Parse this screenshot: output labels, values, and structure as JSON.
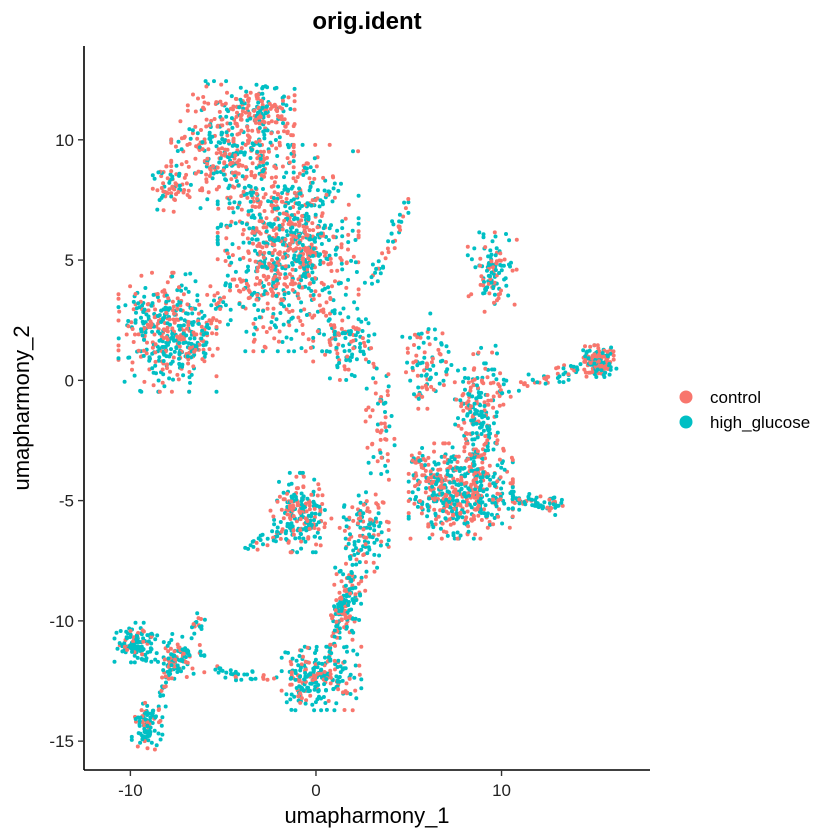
{
  "chart_data": {
    "type": "scatter",
    "title": "orig.ident",
    "xlabel": "umapharmony_1",
    "ylabel": "umapharmony_2",
    "xlim": [
      -12.5,
      18
    ],
    "ylim": [
      -16.2,
      13.9
    ],
    "xticks": [
      -10,
      0,
      10
    ],
    "yticks": [
      -15,
      -10,
      -5,
      0,
      5,
      10
    ],
    "grid": false,
    "legend_position": "right",
    "series": [
      {
        "name": "control",
        "color": "#F8766D"
      },
      {
        "name": "high_glucose",
        "color": "#00BFC4"
      }
    ],
    "clusters": [
      {
        "x": -1.5,
        "y": 5.5,
        "sx": 2.3,
        "sy": 2.6,
        "n": 900,
        "control_share": 0.55
      },
      {
        "x": -4.5,
        "y": 9.8,
        "sx": 2.0,
        "sy": 1.6,
        "n": 380,
        "control_share": 0.65
      },
      {
        "x": -2.8,
        "y": 11.3,
        "sx": 1.0,
        "sy": 0.6,
        "n": 120,
        "control_share": 0.55
      },
      {
        "x": -7.8,
        "y": 8.0,
        "sx": 0.6,
        "sy": 0.6,
        "n": 60,
        "control_share": 0.6
      },
      {
        "x": -8.0,
        "y": 2.0,
        "sx": 1.6,
        "sy": 1.5,
        "n": 420,
        "control_share": 0.5
      },
      {
        "x": 1.5,
        "y": 1.5,
        "sx": 1.0,
        "sy": 0.9,
        "n": 110,
        "control_share": 0.45
      },
      {
        "x": 7.8,
        "y": -4.6,
        "sx": 1.7,
        "sy": 1.2,
        "n": 520,
        "control_share": 0.45
      },
      {
        "x": 8.8,
        "y": -1.2,
        "sx": 0.8,
        "sy": 1.6,
        "n": 200,
        "control_share": 0.45
      },
      {
        "x": 9.5,
        "y": 4.5,
        "sx": 0.8,
        "sy": 1.0,
        "n": 110,
        "control_share": 0.3
      },
      {
        "x": 15.2,
        "y": 0.8,
        "sx": 0.6,
        "sy": 0.4,
        "n": 150,
        "control_share": 0.6
      },
      {
        "x": 6.0,
        "y": 0.8,
        "sx": 0.9,
        "sy": 1.2,
        "n": 90,
        "control_share": 0.45
      },
      {
        "x": -0.8,
        "y": -5.5,
        "sx": 1.0,
        "sy": 1.0,
        "n": 200,
        "control_share": 0.45
      },
      {
        "x": 2.6,
        "y": -6.3,
        "sx": 0.8,
        "sy": 1.0,
        "n": 120,
        "control_share": 0.5
      },
      {
        "x": 1.7,
        "y": -9.3,
        "sx": 0.6,
        "sy": 1.2,
        "n": 110,
        "control_share": 0.5
      },
      {
        "x": 0.3,
        "y": -12.4,
        "sx": 1.3,
        "sy": 0.8,
        "n": 220,
        "control_share": 0.3
      },
      {
        "x": -9.7,
        "y": -10.9,
        "sx": 0.7,
        "sy": 0.5,
        "n": 120,
        "control_share": 0.2
      },
      {
        "x": -7.5,
        "y": -11.5,
        "sx": 0.9,
        "sy": 0.6,
        "n": 100,
        "control_share": 0.4
      },
      {
        "x": -9.1,
        "y": -14.4,
        "sx": 0.5,
        "sy": 0.6,
        "n": 90,
        "control_share": 0.3
      },
      {
        "x": 3.5,
        "y": -2.0,
        "sx": 0.5,
        "sy": 2.0,
        "n": 60,
        "control_share": 0.6
      }
    ],
    "paths": [
      {
        "from": [
          10.0,
          -5.0
        ],
        "to": [
          13.2,
          -5.2
        ],
        "n": 70,
        "control_share": 0.3
      },
      {
        "from": [
          9.6,
          -0.5
        ],
        "to": [
          14.5,
          0.5
        ],
        "n": 50,
        "control_share": 0.55
      },
      {
        "from": [
          -5.5,
          -12.0
        ],
        "to": [
          -0.5,
          -13.0
        ],
        "n": 45,
        "control_share": 0.4
      },
      {
        "from": [
          -4.0,
          -6.9
        ],
        "to": [
          -0.5,
          -6.2
        ],
        "n": 40,
        "control_share": 0.2
      },
      {
        "from": [
          3.0,
          4.0
        ],
        "to": [
          5.0,
          7.5
        ],
        "n": 40,
        "control_share": 0.4
      },
      {
        "from": [
          -6.8,
          1.0
        ],
        "to": [
          -4.5,
          4.0
        ],
        "n": 40,
        "control_share": 0.5
      },
      {
        "from": [
          0.8,
          -11.5
        ],
        "to": [
          1.8,
          -8.0
        ],
        "n": 60,
        "control_share": 0.4
      },
      {
        "from": [
          -8.5,
          -13.5
        ],
        "to": [
          -7.8,
          -11.8
        ],
        "n": 30,
        "control_share": 0.4
      },
      {
        "from": [
          -6.5,
          -10.5
        ],
        "to": [
          -6.3,
          -9.8
        ],
        "n": 15,
        "control_share": 0.2
      },
      {
        "from": [
          5.2,
          -3.0
        ],
        "to": [
          6.8,
          -4.5
        ],
        "n": 40,
        "control_share": 0.5
      }
    ]
  },
  "legend": {
    "items": [
      {
        "label": "control",
        "color": "#F8766D"
      },
      {
        "label": "high_glucose",
        "color": "#00BFC4"
      }
    ]
  }
}
